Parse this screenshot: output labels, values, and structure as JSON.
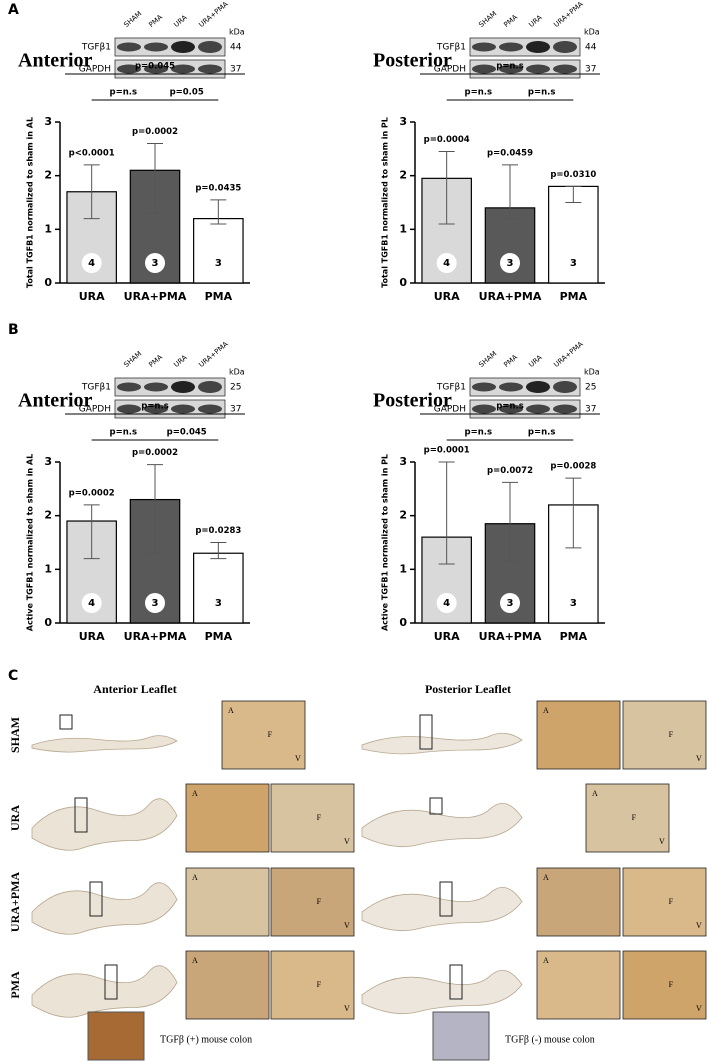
{
  "panel_labels": [
    "A",
    "B",
    "C"
  ],
  "chart_data": [
    {
      "type": "bar",
      "heading": "Anterior",
      "ylabel": "Total TGFB1 normalized to sham in AL",
      "categories": [
        "URA",
        "URA+PMA",
        "PMA"
      ],
      "values": [
        1.7,
        2.1,
        1.2
      ],
      "error_bounds": [
        [
          1.2,
          2.2
        ],
        [
          1.3,
          2.6
        ],
        [
          1.1,
          1.55
        ]
      ],
      "colors": [
        "#d9d9d9",
        "#595959",
        "#ffffff"
      ],
      "p_labels": [
        "p<0.0001",
        "p=0.0002",
        "p=0.0435"
      ],
      "n": [
        4,
        3,
        3
      ],
      "comparisons": [
        {
          "label": "p=0.045",
          "groups": [
            "URA",
            "PMA"
          ]
        },
        {
          "label": "p=n.s",
          "groups": [
            "URA",
            "URA+PMA"
          ]
        },
        {
          "label": "p=0.05",
          "groups": [
            "URA+PMA",
            "PMA"
          ]
        }
      ],
      "ylim": [
        0,
        3
      ],
      "yticks": [
        0,
        1,
        2,
        3
      ],
      "blot": {
        "lanes": [
          "SHAM",
          "PMA",
          "URA",
          "URA+PMA"
        ],
        "unit": "kDa",
        "rows": [
          {
            "label": "TGFβ1",
            "kda": 44
          },
          {
            "label": "GAPDH",
            "kda": 37
          }
        ]
      }
    },
    {
      "type": "bar",
      "heading": "Posterior",
      "ylabel": "Total TGFB1 normalized to sham in PL",
      "categories": [
        "URA",
        "URA+PMA",
        "PMA"
      ],
      "values": [
        1.95,
        1.4,
        1.8
      ],
      "error_bounds": [
        [
          1.1,
          2.45
        ],
        [
          1.2,
          2.2
        ],
        [
          1.5,
          1.8
        ]
      ],
      "colors": [
        "#d9d9d9",
        "#595959",
        "#ffffff"
      ],
      "p_labels": [
        "p=0.0004",
        "p=0.0459",
        "p=0.0310"
      ],
      "n": [
        4,
        3,
        3
      ],
      "comparisons": [
        {
          "label": "p=n.s",
          "groups": [
            "URA",
            "PMA"
          ]
        },
        {
          "label": "p=n.s",
          "groups": [
            "URA",
            "URA+PMA"
          ]
        },
        {
          "label": "p=n.s",
          "groups": [
            "URA+PMA",
            "PMA"
          ]
        }
      ],
      "ylim": [
        0,
        3
      ],
      "yticks": [
        0,
        1,
        2,
        3
      ],
      "blot": {
        "lanes": [
          "SHAM",
          "PMA",
          "URA",
          "URA+PMA"
        ],
        "unit": "kDa",
        "rows": [
          {
            "label": "TGFβ1",
            "kda": 44
          },
          {
            "label": "GAPDH",
            "kda": 37
          }
        ]
      }
    },
    {
      "type": "bar",
      "heading": "Anterior",
      "ylabel": "Active TGFB1 normalized to sham in AL",
      "categories": [
        "URA",
        "URA+PMA",
        "PMA"
      ],
      "values": [
        1.9,
        2.3,
        1.3
      ],
      "error_bounds": [
        [
          1.2,
          2.2
        ],
        [
          1.3,
          2.95
        ],
        [
          1.2,
          1.5
        ]
      ],
      "colors": [
        "#d9d9d9",
        "#595959",
        "#ffffff"
      ],
      "p_labels": [
        "p=0.0002",
        "p=0.0002",
        "p=0.0283"
      ],
      "n": [
        4,
        3,
        3
      ],
      "comparisons": [
        {
          "label": "p=n.s",
          "groups": [
            "URA",
            "PMA"
          ]
        },
        {
          "label": "p=n.s",
          "groups": [
            "URA",
            "URA+PMA"
          ]
        },
        {
          "label": "p=0.045",
          "groups": [
            "URA+PMA",
            "PMA"
          ]
        }
      ],
      "ylim": [
        0,
        3
      ],
      "yticks": [
        0,
        1,
        2,
        3
      ],
      "blot": {
        "lanes": [
          "SHAM",
          "PMA",
          "URA",
          "URA+PMA"
        ],
        "unit": "kDa",
        "rows": [
          {
            "label": "TGFβ1",
            "kda": 25
          },
          {
            "label": "GAPDH",
            "kda": 37
          }
        ]
      }
    },
    {
      "type": "bar",
      "heading": "Posterior",
      "ylabel": "Active TGFB1 normalized to sham in PL",
      "categories": [
        "URA",
        "URA+PMA",
        "PMA"
      ],
      "values": [
        1.6,
        1.85,
        2.2
      ],
      "error_bounds": [
        [
          1.1,
          3.0
        ],
        [
          1.15,
          2.62
        ],
        [
          1.4,
          2.7
        ]
      ],
      "colors": [
        "#d9d9d9",
        "#595959",
        "#ffffff"
      ],
      "p_labels": [
        "p=0.0001",
        "p=0.0072",
        "p=0.0028"
      ],
      "n": [
        4,
        3,
        3
      ],
      "comparisons": [
        {
          "label": "p=n.s",
          "groups": [
            "URA",
            "PMA"
          ]
        },
        {
          "label": "p=n.s",
          "groups": [
            "URA",
            "URA+PMA"
          ]
        },
        {
          "label": "p=n.s",
          "groups": [
            "URA+PMA",
            "PMA"
          ]
        }
      ],
      "ylim": [
        0,
        3
      ],
      "yticks": [
        0,
        1,
        2,
        3
      ],
      "blot": {
        "lanes": [
          "SHAM",
          "PMA",
          "URA",
          "URA+PMA"
        ],
        "unit": "kDa",
        "rows": [
          {
            "label": "TGFβ1",
            "kda": 25
          },
          {
            "label": "GAPDH",
            "kda": 37
          }
        ]
      }
    }
  ],
  "panel_c": {
    "headings": [
      "Anterior Leaflet",
      "Posterior Leaflet"
    ],
    "rows": [
      {
        "label": "SHAM",
        "anterior": [
          [
            "A",
            "F",
            "V"
          ]
        ],
        "posterior": [
          [
            "A"
          ],
          [
            "F",
            "V"
          ]
        ]
      },
      {
        "label": "URA",
        "anterior": [
          [
            "A"
          ],
          [
            "V",
            "F"
          ]
        ],
        "posterior": [
          [
            "A",
            "F",
            "V"
          ]
        ]
      },
      {
        "label": "URA+PMA",
        "anterior": [
          [
            "A"
          ],
          [
            "F",
            "V"
          ]
        ],
        "posterior": [
          [
            "A"
          ],
          [
            "F",
            "V"
          ]
        ]
      },
      {
        "label": "PMA",
        "anterior": [
          [
            "A"
          ],
          [
            "F",
            "V"
          ]
        ],
        "posterior": [
          [
            "A"
          ],
          [
            "F",
            "V"
          ]
        ]
      }
    ],
    "controls": [
      "TGFβ (+) mouse colon",
      "TGFβ (-) mouse colon"
    ]
  }
}
